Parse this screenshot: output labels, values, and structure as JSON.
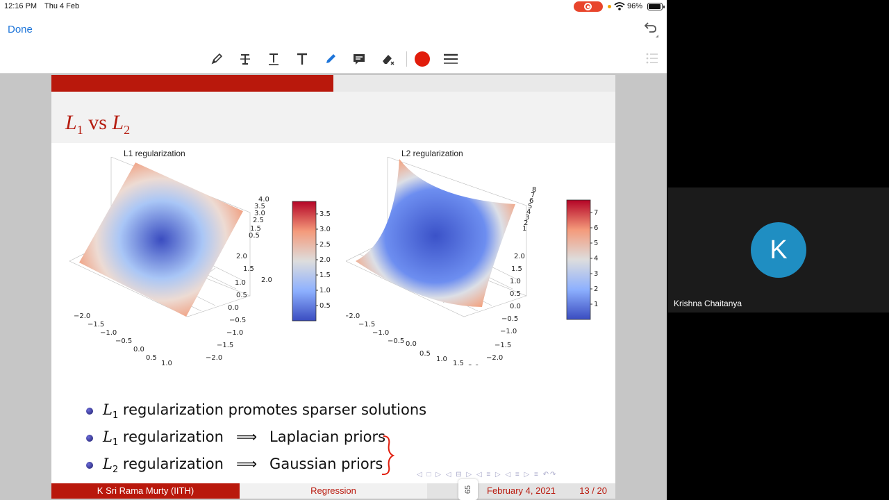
{
  "status_bar": {
    "time": "12:16 PM",
    "date": "Thu 4 Feb",
    "battery": "96%"
  },
  "nav": {
    "done_label": "Done"
  },
  "toolbar": {
    "tools": [
      "pencil-icon",
      "strikethrough-text-icon",
      "underline-text-icon",
      "text-icon",
      "pen-icon",
      "comment-icon",
      "eraser-icon",
      "color-picker",
      "line-width-icon"
    ],
    "active_color": "#e11d0c"
  },
  "slide": {
    "title": {
      "main": "L",
      "sub1": "1",
      "vs": " vs ",
      "sub2": "2"
    },
    "plot1_title": "L1 regularization",
    "plot2_title": "L2 regularization",
    "plot1_colorbar_ticks": [
      "3.5",
      "3.0",
      "2.5",
      "2.0",
      "1.5",
      "1.0",
      "0.5"
    ],
    "plot2_colorbar_ticks": [
      "7",
      "6",
      "5",
      "4",
      "3",
      "2",
      "1"
    ],
    "axis_ticks_x": [
      "−2.0",
      "−1.5",
      "−1.0",
      "−0.5",
      "0.0",
      "0.5",
      "1.0",
      "1.5",
      "2.0"
    ],
    "axis_ticks_y": [
      "2.0",
      "1.5",
      "1.0",
      "0.5",
      "0.0",
      "−0.5",
      "−1.0",
      "−1.5",
      "−2.0"
    ],
    "plot1_z_ticks": [
      "4.0",
      "3.5",
      "3.0",
      "2.5",
      "1.5",
      "0.5"
    ],
    "plot2_z_ticks": [
      "8",
      "7",
      "6",
      "5",
      "4",
      "3",
      "2",
      "1"
    ],
    "bullets": [
      {
        "var": "L",
        "sub": "1",
        "text": " regularization promotes sparser solutions"
      },
      {
        "var": "L",
        "sub": "1",
        "text": " regularization",
        "arrow": "⟹",
        "rhs": "Laplacian priors"
      },
      {
        "var": "L",
        "sub": "2",
        "text": " regularization",
        "arrow": "⟹",
        "rhs": "Gaussian priors"
      }
    ],
    "footer": {
      "author": "K Sri Rama Murty  (IITH)",
      "topic": "Regression",
      "date": "February 4, 2021",
      "page": "13 / 20"
    },
    "page_indicator": "65"
  },
  "participant": {
    "initial": "K",
    "name": "Krishna Chaitanya"
  },
  "colors": {
    "accent": "#b9180c",
    "link": "#1c74d9",
    "avatar": "#1f8ec2"
  }
}
